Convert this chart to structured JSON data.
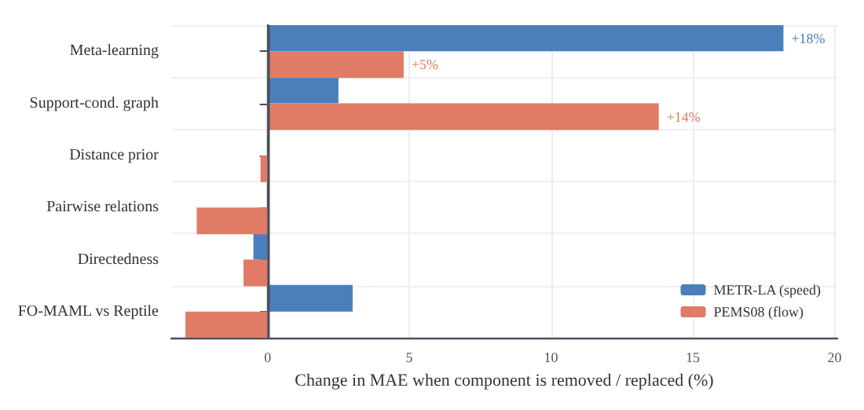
{
  "chart_data": {
    "type": "bar",
    "orientation": "horizontal",
    "xlabel": "Change in MAE when component is removed / replaced (%)",
    "categories": [
      "Meta-learning",
      "Support-cond. graph",
      "Distance prior",
      "Pairwise relations",
      "Directedness",
      "FO-MAML vs Reptile"
    ],
    "series": [
      {
        "name": "METR-LA (speed)",
        "color": "#4a7fbc",
        "values": [
          18.2,
          2.5,
          null,
          null,
          -0.5,
          3.0
        ],
        "value_labels": [
          "+18%",
          null,
          null,
          null,
          null,
          null
        ]
      },
      {
        "name": "PEMS08 (flow)",
        "color": "#e07b65",
        "values": [
          4.8,
          13.8,
          -0.25,
          -2.5,
          -0.85,
          -2.9
        ],
        "value_labels": [
          "+5%",
          "+14%",
          null,
          null,
          null,
          null
        ]
      }
    ],
    "xlim": [
      -3.4,
      20.1
    ],
    "xticks": [
      0,
      5,
      10,
      15,
      20
    ],
    "grid": true,
    "legend": "bottom right",
    "ref_lines": [
      {
        "axis": "x",
        "value": 0,
        "color": "#4a4f5c"
      }
    ]
  }
}
